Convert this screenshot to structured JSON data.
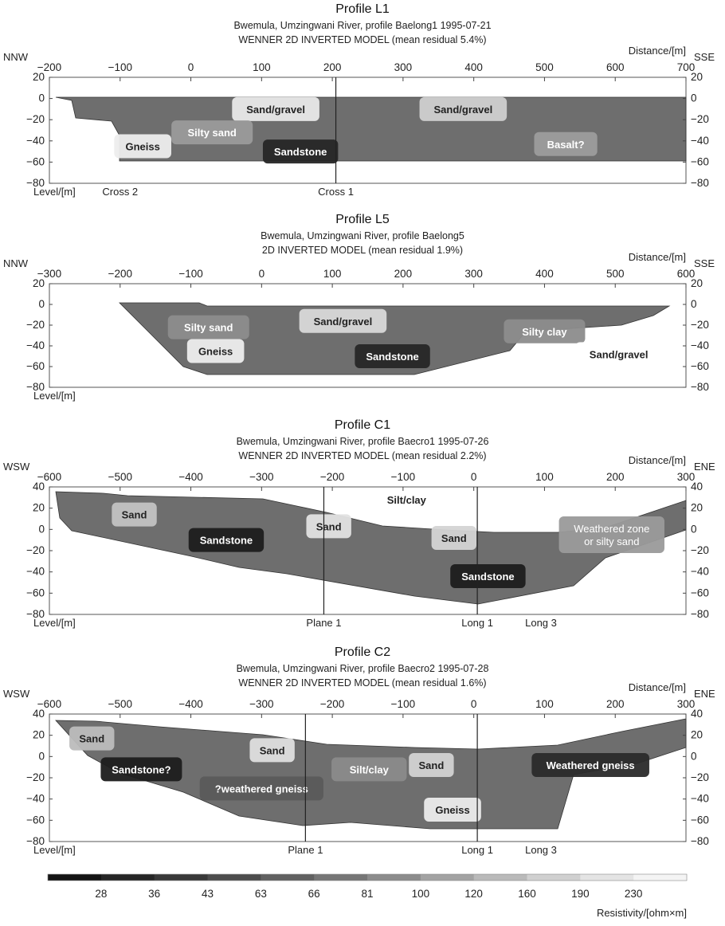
{
  "figure": {
    "legend_title": "Resistivity/[ohm×m]",
    "colorbar": {
      "labels": [
        "28",
        "36",
        "43",
        "63",
        "66",
        "81",
        "100",
        "120",
        "160",
        "190",
        "230"
      ],
      "colors": [
        "#141414",
        "#262626",
        "#393939",
        "#4d4d4d",
        "#616161",
        "#767676",
        "#8c8c8c",
        "#a3a3a3",
        "#bababa",
        "#d0d0d0",
        "#e4e4e4",
        "#f4f4f4"
      ]
    }
  },
  "chart_data": [
    {
      "type": "heatmap",
      "title": "Profile L1",
      "subtitle1": "Bwemula, Umzingwani River, profile Baelong1 1995-07-21",
      "subtitle2": "WENNER 2D INVERTED MODEL (mean residual 5.4%)",
      "xlabel": "Distance/[m]",
      "ylabel": "Level/[m]",
      "left_dir": "NNW",
      "right_dir": "SSE",
      "xlim": [
        -200,
        700
      ],
      "ylim": [
        -80,
        20
      ],
      "x_ticks": [
        -200,
        -100,
        0,
        100,
        200,
        300,
        400,
        500,
        600,
        700
      ],
      "y_ticks": [
        20,
        0,
        -20,
        -40,
        -60,
        -80
      ],
      "vlines": [
        {
          "x": 205,
          "label": "Cross 1"
        }
      ],
      "bottom_labels": [
        {
          "x": -100,
          "label": "Cross 2"
        },
        {
          "x": 205,
          "label": "Cross 1"
        }
      ],
      "regions": [
        {
          "label": "Sand/gravel",
          "x": 120,
          "y": -10,
          "color": "#e8e8e8",
          "text_color": "#222222"
        },
        {
          "label": "Sand/gravel",
          "x": 385,
          "y": -10,
          "color": "#cfcfcf",
          "text_color": "#222222"
        },
        {
          "label": "Silty sand",
          "x": 30,
          "y": -32,
          "color": "#9a9a9a",
          "text_color": "#ffffff"
        },
        {
          "label": "Gneiss",
          "x": -68,
          "y": -45,
          "color": "#ededed",
          "text_color": "#222222"
        },
        {
          "label": "Sandstone",
          "x": 155,
          "y": -50,
          "color": "#262626",
          "text_color": "#ffffff"
        },
        {
          "label": "Basalt?",
          "x": 530,
          "y": -43,
          "color": "#9c9c9c",
          "text_color": "#ffffff"
        }
      ]
    },
    {
      "type": "heatmap",
      "title": "Profile L5",
      "subtitle1": "Bwemula, Umzingwani River, profile Baelong5",
      "subtitle2": "2D INVERTED MODEL (mean residual 1.9%)",
      "xlabel": "Distance/[m]",
      "ylabel": "Level/[m]",
      "left_dir": "NNW",
      "right_dir": "SSE",
      "xlim": [
        -300,
        600
      ],
      "ylim": [
        -80,
        20
      ],
      "x_ticks": [
        -300,
        -200,
        -100,
        0,
        100,
        200,
        300,
        400,
        500,
        600
      ],
      "y_ticks": [
        20,
        0,
        -20,
        -40,
        -60,
        -80
      ],
      "vlines": [],
      "bottom_labels": [],
      "regions": [
        {
          "label": "Silty sand",
          "x": -75,
          "y": -22,
          "color": "#8c8c8c",
          "text_color": "#ffffff"
        },
        {
          "label": "Sand/gravel",
          "x": 115,
          "y": -16,
          "color": "#d8d8d8",
          "text_color": "#222222"
        },
        {
          "label": "Gneiss",
          "x": -65,
          "y": -45,
          "color": "#ededed",
          "text_color": "#222222"
        },
        {
          "label": "Sandstone",
          "x": 185,
          "y": -50,
          "color": "#262626",
          "text_color": "#ffffff"
        },
        {
          "label": "Silty clay",
          "x": 400,
          "y": -26,
          "color": "#8c8c8c",
          "text_color": "#ffffff"
        },
        {
          "label": "Sand/gravel",
          "x": 505,
          "y": -48,
          "color": "#ffffff",
          "text_color": "#222222"
        }
      ]
    },
    {
      "type": "heatmap",
      "title": "Profile C1",
      "subtitle1": "Bwemula, Umzingwani River, profile Baecro1 1995-07-26",
      "subtitle2": "WENNER 2D INVERTED MODEL (mean residual 2.2%)",
      "xlabel": "Distance/[m]",
      "ylabel": "Level/[m]",
      "left_dir": "WSW",
      "right_dir": "ENE",
      "xlim": [
        -600,
        300
      ],
      "ylim": [
        -80,
        40
      ],
      "x_ticks": [
        -600,
        -500,
        -400,
        -300,
        -200,
        -100,
        0,
        100,
        200,
        300
      ],
      "y_ticks": [
        40,
        20,
        0,
        -20,
        -40,
        -60,
        -80
      ],
      "vlines": [
        {
          "x": -212,
          "label": "Plane 1"
        },
        {
          "x": 5,
          "label": "Long 1"
        }
      ],
      "bottom_labels": [
        {
          "x": -212,
          "label": "Plane 1"
        },
        {
          "x": 5,
          "label": "Long 1"
        },
        {
          "x": 95,
          "label": "Long 3"
        }
      ],
      "regions": [
        {
          "label": "Silt/clay",
          "x": -95,
          "y": 28,
          "color": "#ffffff",
          "text_color": "#222222"
        },
        {
          "label": "Sand",
          "x": -480,
          "y": 14,
          "color": "#c2c2c2",
          "text_color": "#222222"
        },
        {
          "label": "Sand",
          "x": -205,
          "y": 3,
          "color": "#e2e2e2",
          "text_color": "#222222"
        },
        {
          "label": "Sandstone",
          "x": -350,
          "y": -10,
          "color": "#1c1c1c",
          "text_color": "#ffffff"
        },
        {
          "label": "Sand",
          "x": -28,
          "y": -8,
          "color": "#d4d4d4",
          "text_color": "#222222"
        },
        {
          "label": "Weathered zone\nor silty sand",
          "x": 195,
          "y": -5,
          "color": "#9a9a9a",
          "text_color": "#ffffff"
        },
        {
          "label": "Sandstone",
          "x": 20,
          "y": -44,
          "color": "#1c1c1c",
          "text_color": "#ffffff"
        }
      ]
    },
    {
      "type": "heatmap",
      "title": "Profile C2",
      "subtitle1": "Bwemula, Umzingwani River, profile Baecro2 1995-07-28",
      "subtitle2": "WENNER 2D INVERTED MODEL (mean residual 1.6%)",
      "xlabel": "Distance/[m]",
      "ylabel": "Level/[m]",
      "left_dir": "WSW",
      "right_dir": "ENE",
      "xlim": [
        -600,
        300
      ],
      "ylim": [
        -80,
        40
      ],
      "x_ticks": [
        -600,
        -500,
        -400,
        -300,
        -200,
        -100,
        0,
        100,
        200,
        300
      ],
      "y_ticks": [
        40,
        20,
        0,
        -20,
        -40,
        -60,
        -80
      ],
      "vlines": [
        {
          "x": -238,
          "label": "Plane 1"
        },
        {
          "x": 5,
          "label": "Long 1"
        }
      ],
      "bottom_labels": [
        {
          "x": -238,
          "label": "Plane 1"
        },
        {
          "x": 5,
          "label": "Long 1"
        },
        {
          "x": 95,
          "label": "Long 3"
        }
      ],
      "regions": [
        {
          "label": "Sand",
          "x": -540,
          "y": 17,
          "color": "#bcbcbc",
          "text_color": "#222222"
        },
        {
          "label": "Sandstone?",
          "x": -470,
          "y": -12,
          "color": "#1c1c1c",
          "text_color": "#ffffff"
        },
        {
          "label": "Sand",
          "x": -285,
          "y": 6,
          "color": "#dedede",
          "text_color": "#222222"
        },
        {
          "label": "?weathered gneiss",
          "x": -300,
          "y": -30,
          "color": "#5a5a5a",
          "text_color": "#ffffff"
        },
        {
          "label": "Silt/clay",
          "x": -148,
          "y": -12,
          "color": "#8a8a8a",
          "text_color": "#ffffff"
        },
        {
          "label": "Sand",
          "x": -60,
          "y": -8,
          "color": "#d2d2d2",
          "text_color": "#222222"
        },
        {
          "label": "Weathered gneiss",
          "x": 165,
          "y": -8,
          "color": "#2a2a2a",
          "text_color": "#ffffff"
        },
        {
          "label": "Gneiss",
          "x": -30,
          "y": -50,
          "color": "#ebebeb",
          "text_color": "#222222"
        }
      ]
    }
  ]
}
